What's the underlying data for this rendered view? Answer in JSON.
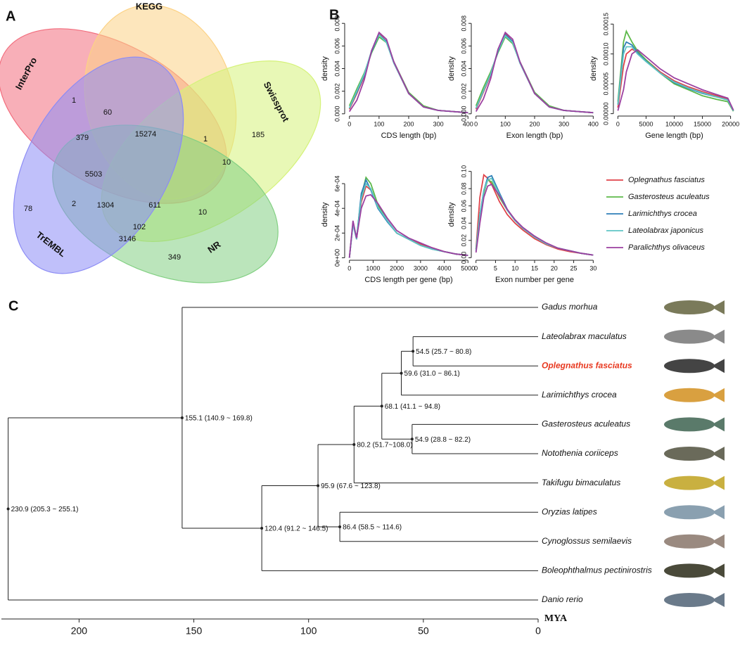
{
  "chart_data": [
    {
      "type": "venn",
      "panel": "A",
      "sets": [
        {
          "name": "InterPro",
          "color": "#f26d7d"
        },
        {
          "name": "KEGG",
          "color": "#fcd285"
        },
        {
          "name": "Swissprot",
          "color": "#d5f27a"
        },
        {
          "name": "NR",
          "color": "#83d083"
        },
        {
          "name": "TrEMBL",
          "color": "#8c8cf5"
        }
      ],
      "values": [
        1,
        60,
        379,
        15274,
        1,
        10,
        185,
        5503,
        2,
        1304,
        611,
        10,
        78,
        3146,
        102,
        349
      ]
    },
    {
      "type": "line",
      "panel": "B",
      "x_label": "CDS length (bp)",
      "y_label": "density",
      "x": [
        0,
        25,
        50,
        75,
        100,
        125,
        150,
        200,
        250,
        300,
        350,
        400
      ],
      "series": [
        {
          "values": [
            0.0004,
            0.0018,
            0.0033,
            0.0055,
            0.0071,
            0.0064,
            0.0045,
            0.0018,
            0.0006,
            0.0003,
            0.0002,
            0.0001
          ]
        },
        {
          "values": [
            0.0007,
            0.0022,
            0.0036,
            0.0054,
            0.0068,
            0.0063,
            0.0046,
            0.0019,
            0.0007,
            0.0003,
            0.0002,
            0.0001
          ]
        },
        {
          "values": [
            0.0005,
            0.0019,
            0.0034,
            0.0055,
            0.007,
            0.0064,
            0.0045,
            0.0018,
            0.0006,
            0.0003,
            0.0002,
            0.0001
          ]
        },
        {
          "values": [
            0.0005,
            0.002,
            0.0035,
            0.0056,
            0.007,
            0.0063,
            0.0045,
            0.0018,
            0.0006,
            0.0003,
            0.0002,
            0.0001
          ]
        },
        {
          "values": [
            0.0002,
            0.0012,
            0.003,
            0.0056,
            0.0072,
            0.0066,
            0.0046,
            0.0018,
            0.0006,
            0.0003,
            0.0002,
            0.0001
          ]
        }
      ],
      "xlim": [
        -16,
        416
      ],
      "ylim": [
        -0.0002,
        0.0082
      ],
      "xticks": [
        0,
        100,
        200,
        300,
        400
      ],
      "yticks": [
        {
          "value": 0,
          "label": "0.000"
        },
        {
          "value": 0.002,
          "label": "0.002"
        },
        {
          "value": 0.004,
          "label": "0.004"
        },
        {
          "value": 0.006,
          "label": "0.006"
        },
        {
          "value": 0.008,
          "label": "0.008"
        }
      ]
    },
    {
      "type": "line",
      "x_label": "Exon length (bp)",
      "y_label": "density",
      "x": [
        0,
        25,
        50,
        75,
        100,
        125,
        150,
        200,
        250,
        300,
        350,
        400
      ],
      "series": [
        {
          "values": [
            0.0004,
            0.0019,
            0.0034,
            0.0056,
            0.0071,
            0.0064,
            0.0045,
            0.0018,
            0.0006,
            0.0003,
            0.0002,
            0.0001
          ]
        },
        {
          "values": [
            0.0007,
            0.0023,
            0.0037,
            0.0054,
            0.0068,
            0.0062,
            0.0046,
            0.0019,
            0.0007,
            0.0003,
            0.0002,
            0.0001
          ]
        },
        {
          "values": [
            0.0005,
            0.002,
            0.0035,
            0.0055,
            0.007,
            0.0064,
            0.0045,
            0.0018,
            0.0006,
            0.0003,
            0.0002,
            0.0001
          ]
        },
        {
          "values": [
            0.0005,
            0.002,
            0.0035,
            0.0056,
            0.0069,
            0.0063,
            0.0045,
            0.0018,
            0.0006,
            0.0003,
            0.0002,
            0.0001
          ]
        },
        {
          "values": [
            0.0002,
            0.0013,
            0.0031,
            0.0057,
            0.0072,
            0.0066,
            0.0046,
            0.0018,
            0.0006,
            0.0003,
            0.0002,
            0.0001
          ]
        }
      ],
      "xlim": [
        -16,
        416
      ],
      "ylim": [
        -0.0002,
        0.0082
      ],
      "xticks": [
        0,
        100,
        200,
        300,
        400
      ],
      "yticks": [
        {
          "value": 0,
          "label": "0.000"
        },
        {
          "value": 0.002,
          "label": "0.002"
        },
        {
          "value": 0.004,
          "label": "0.004"
        },
        {
          "value": 0.006,
          "label": "0.006"
        },
        {
          "value": 0.008,
          "label": "0.008"
        }
      ]
    },
    {
      "type": "line",
      "x_label": "Gene length (bp)",
      "y_label": "density",
      "x": [
        0,
        1000,
        1500,
        2500,
        3500,
        5000,
        7500,
        10000,
        12500,
        15000,
        17500,
        19500,
        20500
      ],
      "series": [
        {
          "values": [
            1e-05,
            8e-05,
            0.0001,
            0.000108,
            0.000103,
            9e-05,
            7e-05,
            5.5e-05,
            4.5e-05,
            3.7e-05,
            3e-05,
            2.5e-05,
            5e-06
          ]
        },
        {
          "values": [
            2e-05,
            0.00012,
            0.000138,
            0.00012,
            0.000105,
            9e-05,
            6.8e-05,
            5e-05,
            4e-05,
            3e-05,
            2.4e-05,
            2e-05,
            4e-06
          ]
        },
        {
          "values": [
            1.5e-05,
            0.00011,
            0.00012,
            0.000115,
            0.000102,
            8.8e-05,
            6.8e-05,
            5.2e-05,
            4.2e-05,
            3.4e-05,
            2.8e-05,
            2.3e-05,
            5e-06
          ]
        },
        {
          "values": [
            1.5e-05,
            0.0001,
            0.000112,
            0.000112,
            0.0001,
            8.7e-05,
            6.8e-05,
            5.3e-05,
            4.3e-05,
            3.5e-05,
            2.8e-05,
            2.3e-05,
            5e-06
          ]
        },
        {
          "values": [
            5e-06,
            4e-05,
            7e-05,
            0.0001,
            0.000107,
            9.5e-05,
            7.5e-05,
            6e-05,
            5e-05,
            4e-05,
            3.2e-05,
            2.6e-05,
            6e-06
          ]
        }
      ],
      "xlim": [
        -800,
        20800
      ],
      "ylim": [
        -4e-06,
        0.000155
      ],
      "xticks": [
        0,
        5000,
        10000,
        15000,
        20000
      ],
      "yticks": [
        {
          "value": 0,
          "label": "0.00000"
        },
        {
          "value": 5e-05,
          "label": "0.00005"
        },
        {
          "value": 0.0001,
          "label": "0.00010"
        },
        {
          "value": 0.00015,
          "label": "0.00015"
        }
      ]
    },
    {
      "type": "line",
      "x_label": "CDS length per gene (bp)",
      "y_label": "density",
      "x": [
        0,
        150,
        300,
        500,
        700,
        900,
        1200,
        1600,
        2000,
        2500,
        3000,
        3500,
        4000,
        4500,
        5000
      ],
      "series": [
        {
          "values": [
            0,
            0.00028,
            0.00015,
            0.00045,
            0.00058,
            0.00055,
            0.00042,
            0.0003,
            0.0002,
            0.00015,
            0.00011,
            8e-05,
            5e-05,
            3e-05,
            2e-05
          ]
        },
        {
          "values": [
            0,
            0.00028,
            0.00016,
            0.0005,
            0.00065,
            0.0006,
            0.00043,
            0.0003,
            0.0002,
            0.00015,
            0.0001,
            7e-05,
            5e-05,
            3e-05,
            2e-05
          ]
        },
        {
          "values": [
            0,
            0.00027,
            0.00015,
            0.00052,
            0.00063,
            0.00055,
            0.0004,
            0.00029,
            0.0002,
            0.00015,
            0.0001,
            7e-05,
            5e-05,
            3e-05,
            2e-05
          ]
        },
        {
          "values": [
            0,
            0.00027,
            0.00015,
            0.00048,
            0.0006,
            0.00056,
            0.00041,
            0.0003,
            0.0002,
            0.00015,
            0.0001,
            7e-05,
            5e-05,
            3e-05,
            2e-05
          ]
        },
        {
          "values": [
            0,
            0.0003,
            0.00016,
            0.0004,
            0.0005,
            0.00051,
            0.00044,
            0.00032,
            0.00022,
            0.00016,
            0.00012,
            8e-05,
            5e-05,
            3e-05,
            2e-05
          ]
        }
      ],
      "xlim": [
        -200,
        5200
      ],
      "ylim": [
        -2e-05,
        0.00072
      ],
      "xticks": [
        0,
        1000,
        2000,
        3000,
        4000,
        5000
      ],
      "yticks": [
        {
          "value": 0,
          "label": "0e+00"
        },
        {
          "value": 0.0002,
          "label": "2e-04"
        },
        {
          "value": 0.0004,
          "label": "4e-04"
        },
        {
          "value": 0.0006,
          "label": "6e-04"
        }
      ]
    },
    {
      "type": "line",
      "x_label": "Exon number per gene",
      "y_label": "density",
      "x": [
        0,
        1,
        2,
        3,
        4,
        6,
        8,
        10,
        12,
        15,
        18,
        21,
        24,
        27,
        30
      ],
      "series": [
        {
          "values": [
            0.01,
            0.07,
            0.096,
            0.092,
            0.085,
            0.065,
            0.05,
            0.04,
            0.032,
            0.022,
            0.015,
            0.01,
            0.007,
            0.005,
            0.003
          ]
        },
        {
          "values": [
            0.01,
            0.05,
            0.075,
            0.09,
            0.088,
            0.07,
            0.055,
            0.043,
            0.034,
            0.024,
            0.016,
            0.011,
            0.008,
            0.005,
            0.003
          ]
        },
        {
          "values": [
            0.008,
            0.05,
            0.078,
            0.093,
            0.095,
            0.075,
            0.056,
            0.043,
            0.034,
            0.024,
            0.016,
            0.011,
            0.008,
            0.005,
            0.003
          ]
        },
        {
          "values": [
            0.008,
            0.05,
            0.078,
            0.09,
            0.092,
            0.073,
            0.055,
            0.043,
            0.034,
            0.024,
            0.016,
            0.011,
            0.008,
            0.005,
            0.003
          ]
        },
        {
          "values": [
            0.006,
            0.04,
            0.07,
            0.083,
            0.085,
            0.072,
            0.056,
            0.044,
            0.035,
            0.025,
            0.017,
            0.011,
            0.008,
            0.005,
            0.003
          ]
        }
      ],
      "xlim": [
        -1.2,
        31.2
      ],
      "ylim": [
        -0.003,
        0.103
      ],
      "xticks": [
        0,
        5,
        10,
        15,
        20,
        25,
        30
      ],
      "yticks": [
        {
          "value": 0,
          "label": "0.00"
        },
        {
          "value": 0.02,
          "label": "0.02"
        },
        {
          "value": 0.04,
          "label": "0.04"
        },
        {
          "value": 0.06,
          "label": "0.06"
        },
        {
          "value": 0.08,
          "label": "0.08"
        },
        {
          "value": 0.1,
          "label": "0.10"
        }
      ]
    },
    {
      "type": "tree",
      "panel": "C",
      "x_label": "MYA",
      "xlim": [
        232,
        0
      ],
      "xticks": [
        200,
        150,
        100,
        50,
        0
      ],
      "root": {
        "age": {
          "value": 230.9,
          "label": "230.9 (205.3 ~ 255.1)"
        },
        "children": [
          {
            "age": {
              "value": 155.1,
              "label": "155.1 (140.9 ~ 169.8)"
            },
            "children": [
              {
                "name": "Gadus morhua"
              },
              {
                "age": {
                  "value": 120.4,
                  "label": "120.4 (91.2 ~ 146.5)"
                },
                "children": [
                  {
                    "age": {
                      "value": 95.9,
                      "label": "95.9 (67.6 ~ 123.8)"
                    },
                    "children": [
                      {
                        "age": {
                          "value": 80.2,
                          "label": "80.2 (51.7~108.0)"
                        },
                        "children": [
                          {
                            "age": {
                              "value": 68.1,
                              "label": "68.1 (41.1 ~ 94.8)"
                            },
                            "children": [
                              {
                                "age": {
                                  "value": 59.6,
                                  "label": "59.6 (31.0 ~ 86.1)"
                                },
                                "children": [
                                  {
                                    "age": {
                                      "value": 54.5,
                                      "label": "54.5 (25.7 ~ 80.8)"
                                    },
                                    "children": [
                                      {
                                        "name": "Lateolabrax maculatus"
                                      },
                                      {
                                        "name": "Oplegnathus fasciatus",
                                        "color": "#e8381f"
                                      }
                                    ]
                                  },
                                  {
                                    "name": "Larimichthys crocea"
                                  }
                                ]
                              },
                              {
                                "age": {
                                  "value": 54.9,
                                  "label": "54.9 (28.8 ~ 82.2)"
                                },
                                "children": [
                                  {
                                    "name": "Gasterosteus aculeatus"
                                  },
                                  {
                                    "name": "Notothenia coriiceps"
                                  }
                                ]
                              }
                            ]
                          },
                          {
                            "name": "Takifugu bimaculatus"
                          }
                        ]
                      },
                      {
                        "age": {
                          "value": 86.4,
                          "label": "86.4 (58.5 ~ 114.6)"
                        },
                        "children": [
                          {
                            "name": "Oryzias latipes"
                          },
                          {
                            "name": "Cynoglossus semilaevis"
                          }
                        ]
                      }
                    ]
                  },
                  {
                    "name": "Boleophthalmus pectinirostris"
                  }
                ]
              }
            ]
          },
          {
            "name": "Danio rerio"
          }
        ]
      }
    }
  ],
  "legend": [
    {
      "name": "Oplegnathus fasciatus",
      "color": "#e0434a"
    },
    {
      "name": "Gasterosteus aculeatus",
      "color": "#5db94a"
    },
    {
      "name": "Larimichthys crocea",
      "color": "#2f7fb8"
    },
    {
      "name": "Lateolabrax japonicus",
      "color": "#5fc4c4"
    },
    {
      "name": "Paralichthys olivaceus",
      "color": "#9b3fa0"
    }
  ]
}
